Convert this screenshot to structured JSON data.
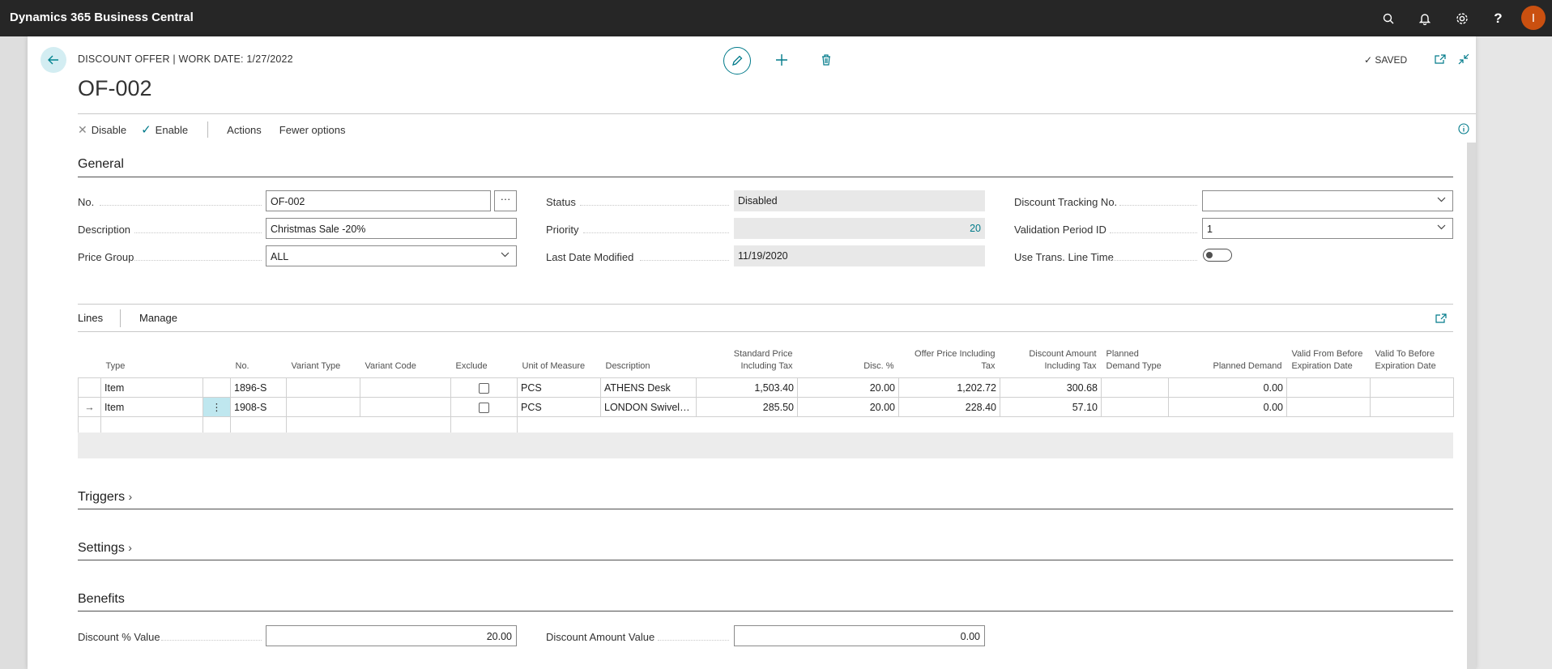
{
  "app": {
    "title": "Dynamics 365 Business Central",
    "avatar_initial": "I"
  },
  "appbar_icons": [
    "search-icon",
    "bell-icon",
    "gear-icon",
    "help-icon"
  ],
  "page": {
    "caption": "DISCOUNT OFFER | WORK DATE: 1/27/2022",
    "title": "OF-002",
    "status_saved": "SAVED"
  },
  "actions": {
    "disable": "Disable",
    "enable": "Enable",
    "actions": "Actions",
    "fewer_options": "Fewer options"
  },
  "general": {
    "section_title": "General",
    "fields": {
      "no": {
        "label": "No.",
        "value": "OF-002"
      },
      "description": {
        "label": "Description",
        "value": "Christmas Sale -20%"
      },
      "price_group": {
        "label": "Price Group",
        "value": "ALL"
      },
      "status": {
        "label": "Status",
        "value": "Disabled"
      },
      "priority": {
        "label": "Priority",
        "value": "20"
      },
      "last_date_modified": {
        "label": "Last Date Modified",
        "value": "11/19/2020"
      },
      "discount_tracking_no": {
        "label": "Discount Tracking No.",
        "value": ""
      },
      "validation_period_id": {
        "label": "Validation Period ID",
        "value": "1"
      },
      "use_trans_line_time": {
        "label": "Use Trans. Line Time",
        "value": false
      }
    }
  },
  "lines": {
    "tabs": {
      "lines": "Lines",
      "manage": "Manage"
    },
    "columns": [
      "Type",
      "No.",
      "Variant Type",
      "Variant Code",
      "Exclude",
      "Unit of Measure",
      "Description",
      "Standard Price Including Tax",
      "Disc. %",
      "Offer Price Including Tax",
      "Discount Amount Including Tax",
      "Planned Demand Type",
      "Planned Demand",
      "Valid From Before Expiration Date",
      "Valid To Before Expiration Date"
    ],
    "rows": [
      {
        "type": "Item",
        "no": "1896-S",
        "variant_type": "",
        "variant_code": "",
        "exclude": false,
        "uom": "PCS",
        "description": "ATHENS Desk",
        "std_price": "1,503.40",
        "disc_pct": "20.00",
        "offer_price": "1,202.72",
        "disc_amount": "300.68",
        "planned_demand_type": "",
        "planned_demand": "0.00",
        "valid_from": "",
        "valid_to": ""
      },
      {
        "type": "Item",
        "no": "1908-S",
        "variant_type": "",
        "variant_code": "",
        "exclude": false,
        "uom": "PCS",
        "description": "LONDON Swivel C...",
        "std_price": "285.50",
        "disc_pct": "20.00",
        "offer_price": "228.40",
        "disc_amount": "57.10",
        "planned_demand_type": "",
        "planned_demand": "0.00",
        "valid_from": "",
        "valid_to": ""
      }
    ],
    "row_menu_glyph": "⋮",
    "current_row_arrow": "→"
  },
  "sections": {
    "triggers": "Triggers",
    "settings": "Settings",
    "benefits": "Benefits"
  },
  "benefits": {
    "discount_pct_value": {
      "label": "Discount % Value",
      "value": "20.00"
    },
    "discount_amount_value": {
      "label": "Discount Amount Value",
      "value": "0.00"
    }
  },
  "colors": {
    "accent": "#007a8a",
    "appbar": "#262626",
    "avatar": "#ca5010",
    "row_menu_bg": "#bfe7ef"
  }
}
